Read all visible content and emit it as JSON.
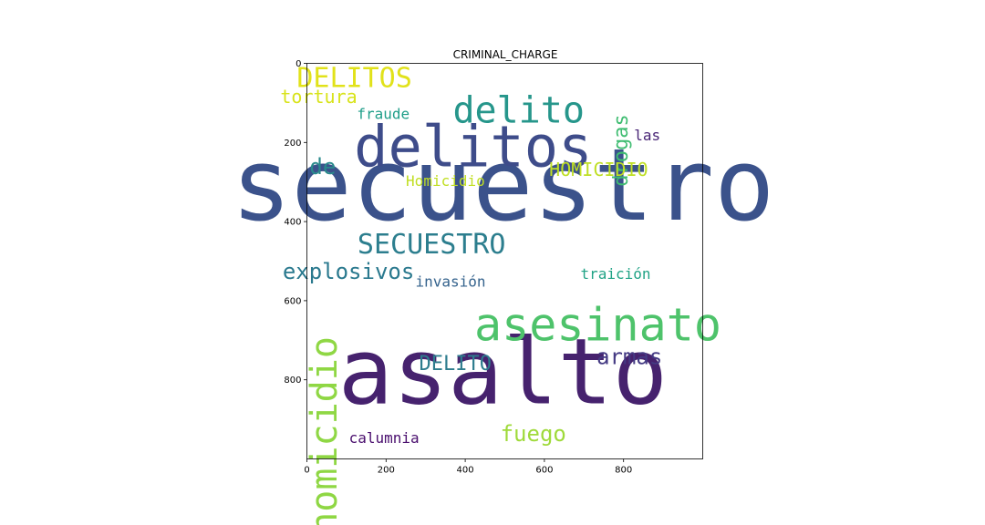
{
  "chart_data": {
    "type": "wordcloud",
    "title": "CRIMINAL_CHARGE",
    "xlim": [
      0,
      1000
    ],
    "ylim": [
      1000,
      0
    ],
    "x_ticks": [
      "0",
      "200",
      "400",
      "600",
      "800"
    ],
    "y_ticks": [
      "0",
      "200",
      "400",
      "600",
      "800"
    ],
    "grid": false,
    "words": [
      {
        "text": "secuestro",
        "x": 495,
        "y": 395,
        "size": 110,
        "rotate": 0,
        "color": "#3b528b"
      },
      {
        "text": "asalto",
        "x": 495,
        "y": 860,
        "size": 100,
        "rotate": 0,
        "color": "#46226e"
      },
      {
        "text": "delitos",
        "x": 420,
        "y": 260,
        "size": 62,
        "rotate": 0,
        "color": "#3e4c8a"
      },
      {
        "text": "asesinato",
        "x": 735,
        "y": 700,
        "size": 50,
        "rotate": 0,
        "color": "#4ec36b"
      },
      {
        "text": "delito",
        "x": 535,
        "y": 150,
        "size": 40,
        "rotate": 0,
        "color": "#26968b"
      },
      {
        "text": "homicidio",
        "x": 75,
        "y": 940,
        "size": 40,
        "rotate": -90,
        "color": "#8fd744"
      },
      {
        "text": "SECUESTRO",
        "x": 315,
        "y": 480,
        "size": 30,
        "rotate": 0,
        "color": "#2c7e8e"
      },
      {
        "text": "DELITOS",
        "x": 120,
        "y": 60,
        "size": 30,
        "rotate": 0,
        "color": "#e1e21a"
      },
      {
        "text": "explosivos",
        "x": 105,
        "y": 545,
        "size": 24,
        "rotate": 0,
        "color": "#2a798e"
      },
      {
        "text": "de",
        "x": 40,
        "y": 280,
        "size": 24,
        "rotate": 0,
        "color": "#2a8a8c"
      },
      {
        "text": "armas",
        "x": 815,
        "y": 760,
        "size": 24,
        "rotate": 0,
        "color": "#443a83"
      },
      {
        "text": "fuego",
        "x": 572,
        "y": 955,
        "size": 24,
        "rotate": 0,
        "color": "#9fda3a"
      },
      {
        "text": "DELITO",
        "x": 375,
        "y": 775,
        "size": 22,
        "rotate": 0,
        "color": "#2d7c8d"
      },
      {
        "text": "drogas",
        "x": 810,
        "y": 220,
        "size": 22,
        "rotate": -90,
        "color": "#40bd72"
      },
      {
        "text": "HOMICIDIO",
        "x": 737,
        "y": 285,
        "size": 20,
        "rotate": 0,
        "color": "#bfdf25"
      },
      {
        "text": "tortura",
        "x": 30,
        "y": 100,
        "size": 20,
        "rotate": 0,
        "color": "#d8e31a"
      },
      {
        "text": "fraude",
        "x": 193,
        "y": 140,
        "size": 16,
        "rotate": 0,
        "color": "#1f9e89"
      },
      {
        "text": "Homicidio",
        "x": 350,
        "y": 310,
        "size": 16,
        "rotate": 0,
        "color": "#c1df24"
      },
      {
        "text": "invasión",
        "x": 363,
        "y": 565,
        "size": 16,
        "rotate": 0,
        "color": "#35638d"
      },
      {
        "text": "traición",
        "x": 780,
        "y": 545,
        "size": 16,
        "rotate": 0,
        "color": "#21a386"
      },
      {
        "text": "las",
        "x": 860,
        "y": 195,
        "size": 16,
        "rotate": 0,
        "color": "#482475"
      },
      {
        "text": "calumnia",
        "x": 195,
        "y": 960,
        "size": 16,
        "rotate": 0,
        "color": "#4a0f6e"
      }
    ]
  }
}
